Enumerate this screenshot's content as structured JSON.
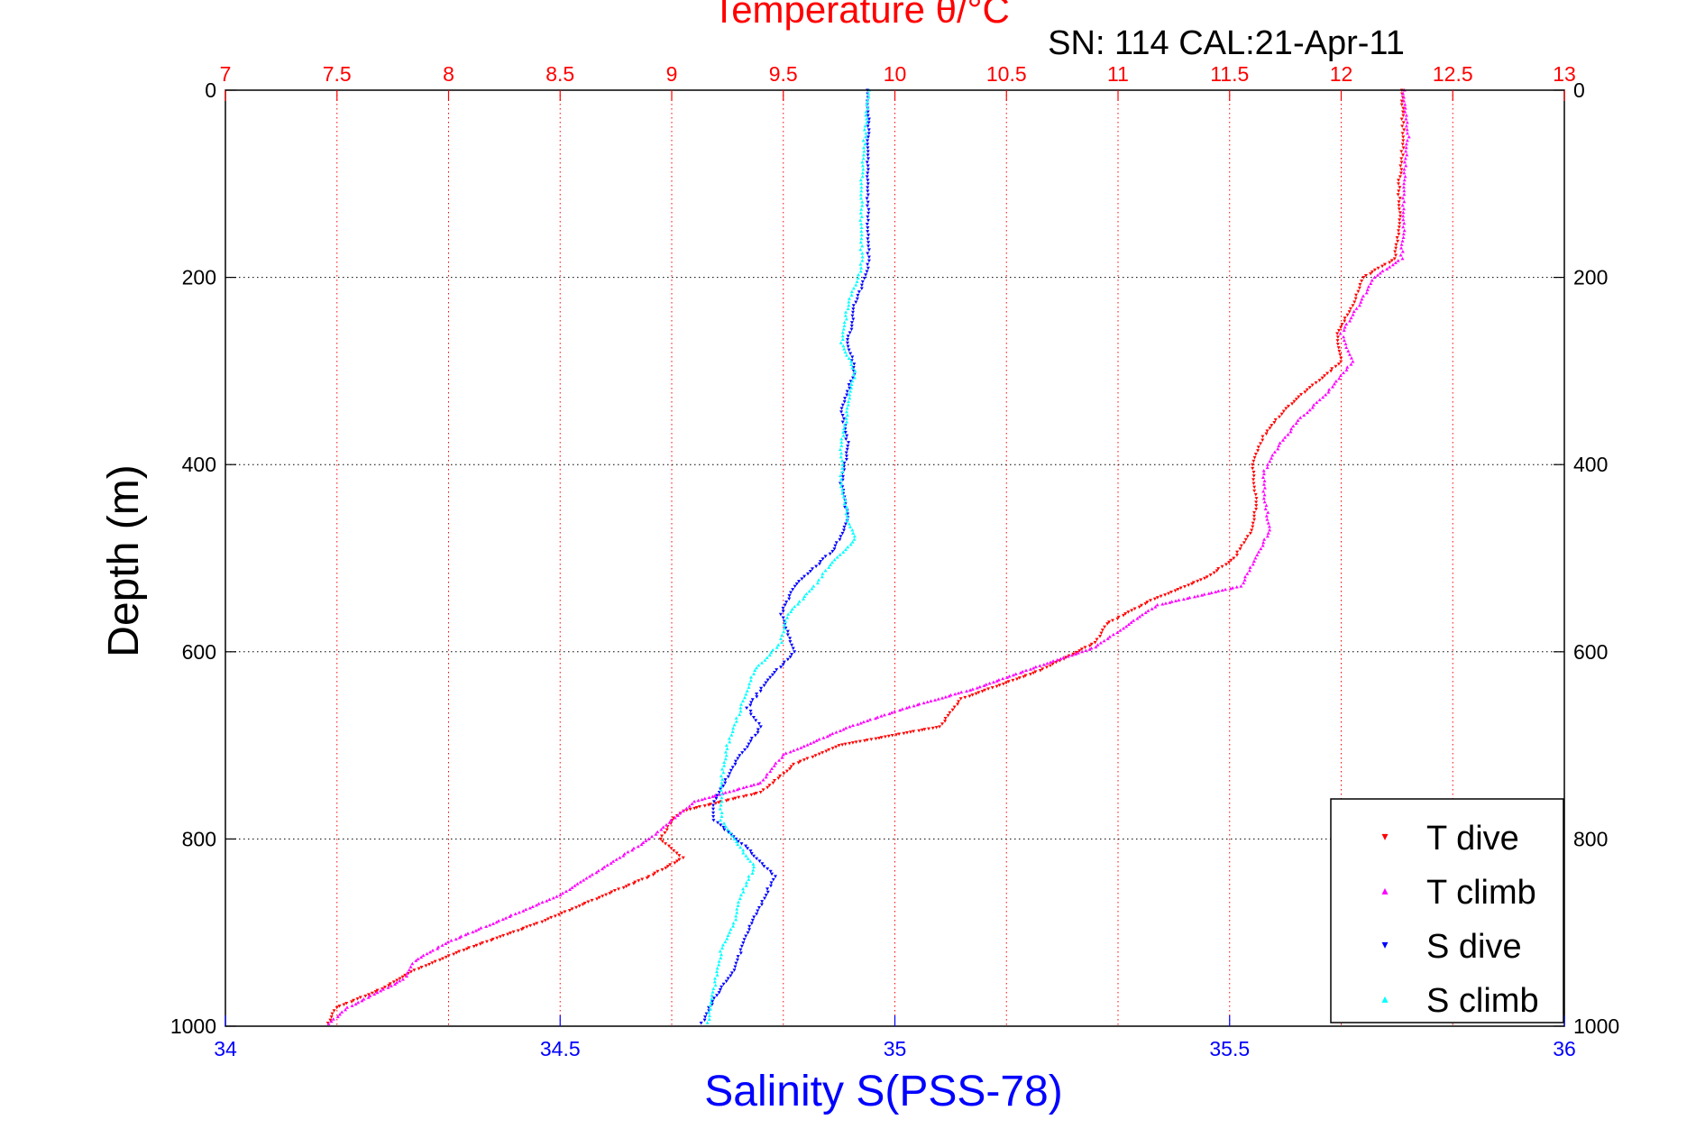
{
  "chart_data": {
    "type": "scatter",
    "title": "Temperature θ/°C",
    "subtitle": "SN: 114  CAL:21-Apr-11",
    "xlabel": "Salinity S(PSS-78)",
    "ylabel": "Depth (m)",
    "x_bottom": {
      "lim": [
        34,
        36
      ],
      "ticks": [
        "34",
        "34.5",
        "35",
        "35.5",
        "36"
      ],
      "color": "#0000ff"
    },
    "x_top": {
      "lim": [
        7,
        13
      ],
      "ticks": [
        "7",
        "7.5",
        "8",
        "8.5",
        "9",
        "9.5",
        "10",
        "10.5",
        "11",
        "11.5",
        "12",
        "12.5",
        "13"
      ],
      "color": "#ff0000"
    },
    "y": {
      "lim": [
        0,
        1000
      ],
      "reversed": true,
      "ticks": [
        "0",
        "200",
        "400",
        "600",
        "800",
        "1000"
      ]
    },
    "grid": true,
    "legend": {
      "placement": "bottom-right",
      "entries": [
        {
          "label": "T dive",
          "color": "#ff0000",
          "marker": "▾"
        },
        {
          "label": "T climb",
          "color": "#ff00ff",
          "marker": "▴"
        },
        {
          "label": "S dive",
          "color": "#0000ff",
          "marker": "▾"
        },
        {
          "label": "S climb",
          "color": "#00ffff",
          "marker": "▴"
        }
      ]
    },
    "series": [
      {
        "name": "T dive",
        "axis": "top",
        "color": "#ff0000",
        "points": [
          [
            12.27,
            0
          ],
          [
            12.28,
            50
          ],
          [
            12.26,
            100
          ],
          [
            12.26,
            150
          ],
          [
            12.24,
            180
          ],
          [
            12.1,
            200
          ],
          [
            12.05,
            230
          ],
          [
            11.98,
            260
          ],
          [
            12.0,
            290
          ],
          [
            11.9,
            310
          ],
          [
            11.75,
            340
          ],
          [
            11.65,
            370
          ],
          [
            11.6,
            400
          ],
          [
            11.62,
            440
          ],
          [
            11.6,
            470
          ],
          [
            11.52,
            500
          ],
          [
            11.4,
            520
          ],
          [
            11.15,
            545
          ],
          [
            10.95,
            570
          ],
          [
            10.9,
            590
          ],
          [
            10.65,
            620
          ],
          [
            10.3,
            650
          ],
          [
            10.2,
            680
          ],
          [
            9.75,
            700
          ],
          [
            9.55,
            720
          ],
          [
            9.4,
            750
          ],
          [
            9.05,
            770
          ],
          [
            9.0,
            780
          ],
          [
            8.95,
            800
          ],
          [
            9.05,
            820
          ],
          [
            8.9,
            840
          ],
          [
            8.6,
            870
          ],
          [
            8.4,
            890
          ],
          [
            8.05,
            920
          ],
          [
            7.85,
            940
          ],
          [
            7.7,
            960
          ],
          [
            7.5,
            980
          ],
          [
            7.45,
            1000
          ]
        ]
      },
      {
        "name": "T climb",
        "axis": "top",
        "color": "#ff00ff",
        "points": [
          [
            12.28,
            0
          ],
          [
            12.3,
            50
          ],
          [
            12.28,
            100
          ],
          [
            12.28,
            150
          ],
          [
            12.27,
            180
          ],
          [
            12.15,
            200
          ],
          [
            12.08,
            230
          ],
          [
            12.0,
            260
          ],
          [
            12.05,
            290
          ],
          [
            11.95,
            320
          ],
          [
            11.82,
            350
          ],
          [
            11.72,
            380
          ],
          [
            11.65,
            410
          ],
          [
            11.66,
            440
          ],
          [
            11.68,
            470
          ],
          [
            11.62,
            500
          ],
          [
            11.55,
            530
          ],
          [
            11.18,
            550
          ],
          [
            11.02,
            575
          ],
          [
            10.9,
            595
          ],
          [
            10.65,
            615
          ],
          [
            10.35,
            640
          ],
          [
            10.05,
            660
          ],
          [
            9.8,
            680
          ],
          [
            9.5,
            710
          ],
          [
            9.4,
            740
          ],
          [
            9.1,
            760
          ],
          [
            9.0,
            780
          ],
          [
            8.9,
            800
          ],
          [
            8.7,
            830
          ],
          [
            8.5,
            860
          ],
          [
            8.3,
            880
          ],
          [
            8.0,
            910
          ],
          [
            7.85,
            930
          ],
          [
            7.8,
            950
          ],
          [
            7.55,
            980
          ],
          [
            7.45,
            1000
          ]
        ]
      },
      {
        "name": "S dive",
        "axis": "bottom",
        "color": "#0000ff",
        "points": [
          [
            34.96,
            0
          ],
          [
            34.96,
            100
          ],
          [
            34.96,
            190
          ],
          [
            34.94,
            230
          ],
          [
            34.93,
            270
          ],
          [
            34.94,
            300
          ],
          [
            34.92,
            340
          ],
          [
            34.93,
            380
          ],
          [
            34.92,
            420
          ],
          [
            34.93,
            460
          ],
          [
            34.91,
            490
          ],
          [
            34.85,
            530
          ],
          [
            34.83,
            560
          ],
          [
            34.85,
            600
          ],
          [
            34.81,
            630
          ],
          [
            34.78,
            660
          ],
          [
            34.8,
            680
          ],
          [
            34.76,
            720
          ],
          [
            34.73,
            760
          ],
          [
            34.73,
            780
          ],
          [
            34.78,
            810
          ],
          [
            34.82,
            840
          ],
          [
            34.8,
            870
          ],
          [
            34.78,
            900
          ],
          [
            34.76,
            940
          ],
          [
            34.73,
            970
          ],
          [
            34.71,
            1000
          ]
        ]
      },
      {
        "name": "S climb",
        "axis": "bottom",
        "color": "#00ffff",
        "points": [
          [
            34.96,
            0
          ],
          [
            34.95,
            100
          ],
          [
            34.95,
            190
          ],
          [
            34.93,
            230
          ],
          [
            34.92,
            270
          ],
          [
            34.94,
            300
          ],
          [
            34.93,
            340
          ],
          [
            34.92,
            380
          ],
          [
            34.92,
            420
          ],
          [
            34.93,
            460
          ],
          [
            34.94,
            480
          ],
          [
            34.9,
            510
          ],
          [
            34.88,
            530
          ],
          [
            34.84,
            560
          ],
          [
            34.83,
            590
          ],
          [
            34.79,
            620
          ],
          [
            34.77,
            660
          ],
          [
            34.75,
            700
          ],
          [
            34.74,
            740
          ],
          [
            34.74,
            780
          ],
          [
            34.76,
            800
          ],
          [
            34.79,
            830
          ],
          [
            34.77,
            860
          ],
          [
            34.76,
            890
          ],
          [
            34.74,
            920
          ],
          [
            34.73,
            960
          ],
          [
            34.72,
            1000
          ]
        ]
      }
    ]
  }
}
